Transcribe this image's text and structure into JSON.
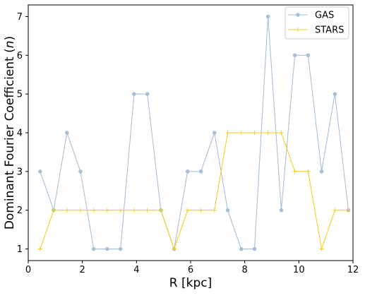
{
  "chart_data": {
    "type": "line",
    "xlabel": "R [kpc]",
    "ylabel_main": "Dominant Fourier Coefficient (",
    "ylabel_var": "n",
    "ylabel_close": ")",
    "xlim": [
      0,
      12
    ],
    "ylim": [
      0.7,
      7.3
    ],
    "xticks": [
      0,
      2,
      4,
      6,
      8,
      10,
      12
    ],
    "yticks": [
      1,
      2,
      3,
      4,
      5,
      6,
      7
    ],
    "grid": false,
    "legend_position": "top-right",
    "series": [
      {
        "name": "GAS",
        "color": "#a7c0d8",
        "marker": "circle",
        "x": [
          0.44,
          0.94,
          1.43,
          1.93,
          2.42,
          2.92,
          3.41,
          3.91,
          4.4,
          4.9,
          5.39,
          5.89,
          6.38,
          6.88,
          7.37,
          7.87,
          8.36,
          8.86,
          9.35,
          9.85,
          10.34,
          10.84,
          11.33,
          11.83
        ],
        "y": [
          3,
          2,
          4,
          3,
          1,
          1,
          1,
          5,
          5,
          2,
          1,
          3,
          3,
          4,
          2,
          1,
          1,
          7,
          2,
          6,
          6,
          3,
          5,
          2
        ]
      },
      {
        "name": "STARS",
        "color": "#f6cf1e",
        "marker": "plus",
        "x": [
          0.44,
          0.94,
          1.43,
          1.93,
          2.42,
          2.92,
          3.41,
          3.91,
          4.4,
          4.9,
          5.39,
          5.89,
          6.38,
          6.88,
          7.37,
          7.87,
          8.36,
          8.86,
          9.35,
          9.85,
          10.34,
          10.84,
          11.33,
          11.83
        ],
        "y": [
          1,
          2,
          2,
          2,
          2,
          2,
          2,
          2,
          2,
          2,
          1,
          2,
          2,
          2,
          4,
          4,
          4,
          4,
          4,
          3,
          3,
          1,
          2,
          2
        ]
      }
    ]
  }
}
